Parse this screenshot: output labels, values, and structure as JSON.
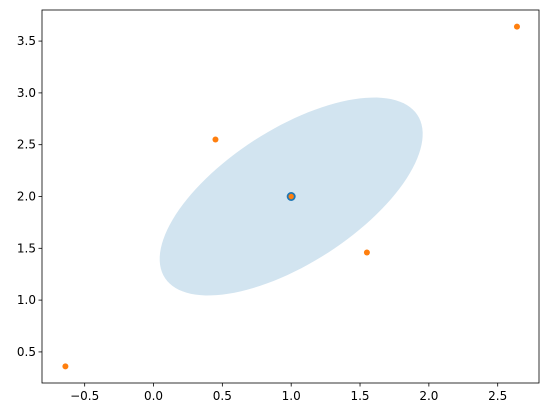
{
  "chart_data": {
    "type": "scatter",
    "title": "",
    "xlabel": "",
    "ylabel": "",
    "xlim": [
      -0.81,
      2.8
    ],
    "ylim": [
      0.2,
      3.8
    ],
    "grid": false,
    "legend": null,
    "x_ticks": [
      -0.5,
      0.0,
      0.5,
      1.0,
      1.5,
      2.0,
      2.5
    ],
    "x_tick_labels": [
      "−0.5",
      "0.0",
      "0.5",
      "1.0",
      "1.5",
      "2.0",
      "2.5"
    ],
    "y_ticks": [
      0.5,
      1.0,
      1.5,
      2.0,
      2.5,
      3.0,
      3.5
    ],
    "y_tick_labels": [
      "0.5",
      "1.0",
      "1.5",
      "2.0",
      "2.5",
      "3.0",
      "3.5"
    ],
    "series": [
      {
        "marker": "circle",
        "color": "#ff7f0e",
        "x": [
          -0.64,
          0.45,
          1.0,
          1.55,
          2.64
        ],
        "y": [
          0.36,
          2.55,
          2.0,
          1.46,
          3.64
        ]
      },
      {
        "marker": "ring",
        "color": "#1f77b4",
        "x": [
          1.0
        ],
        "y": [
          2.0
        ]
      }
    ],
    "ellipse": {
      "center": [
        1.0,
        2.0
      ],
      "rx_data": 1.22,
      "ry_data": 0.58,
      "angle_deg": 45,
      "color": "#1f77b4",
      "opacity": 0.2
    }
  }
}
